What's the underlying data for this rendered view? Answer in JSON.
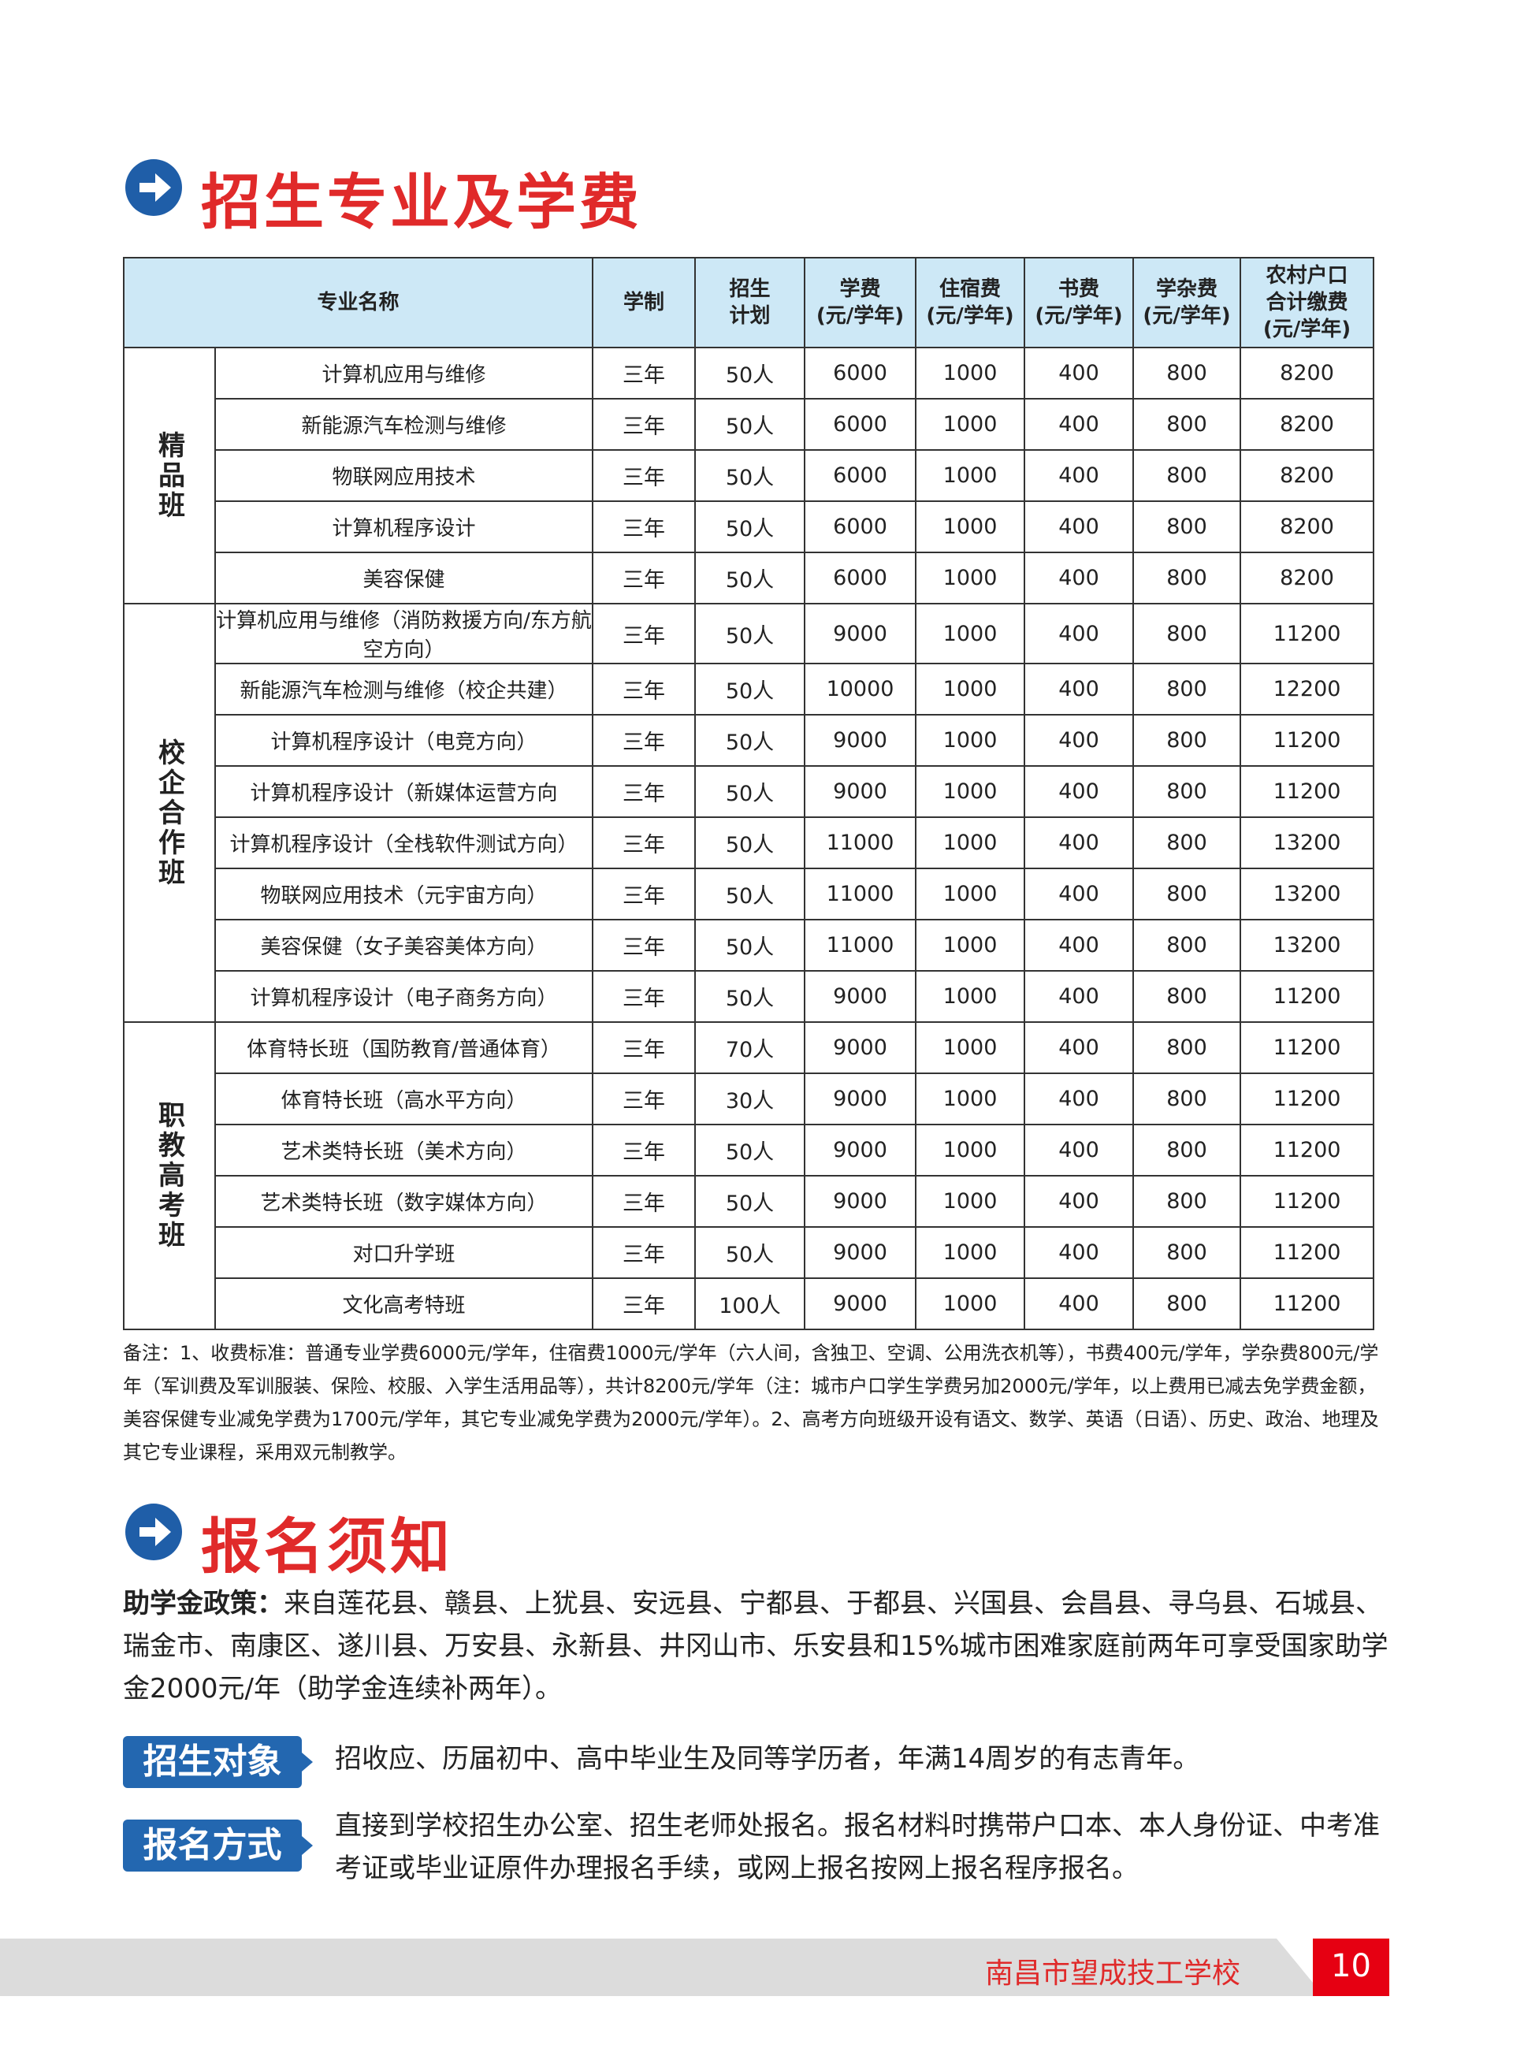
{
  "section1": {
    "title": "招生专业及学费"
  },
  "table": {
    "header": [
      [
        "专业名称"
      ],
      [
        "学制"
      ],
      [
        "招生",
        "计划"
      ],
      [
        "学费",
        "(元/学年)"
      ],
      [
        "住宿费",
        "(元/学年)"
      ],
      [
        "书费",
        "(元/学年)"
      ],
      [
        "学杂费",
        "(元/学年)"
      ],
      [
        "农村户口",
        "合计缴费",
        "(元/学年)"
      ]
    ],
    "groups": [
      {
        "name": "精品班",
        "rows": [
          [
            "计算机应用与维修",
            "三年",
            "50人",
            6000,
            1000,
            400,
            800,
            8200
          ],
          [
            "新能源汽车检测与维修",
            "三年",
            "50人",
            6000,
            1000,
            400,
            800,
            8200
          ],
          [
            "物联网应用技术",
            "三年",
            "50人",
            6000,
            1000,
            400,
            800,
            8200
          ],
          [
            "计算机程序设计",
            "三年",
            "50人",
            6000,
            1000,
            400,
            800,
            8200
          ],
          [
            "美容保健",
            "三年",
            "50人",
            6000,
            1000,
            400,
            800,
            8200
          ]
        ]
      },
      {
        "name": "校企合作班",
        "rows": [
          [
            "计算机应用与维修（消防救援方向/东方航空方向）",
            "三年",
            "50人",
            9000,
            1000,
            400,
            800,
            11200
          ],
          [
            "新能源汽车检测与维修（校企共建）",
            "三年",
            "50人",
            10000,
            1000,
            400,
            800,
            12200
          ],
          [
            "计算机程序设计（电竞方向）",
            "三年",
            "50人",
            9000,
            1000,
            400,
            800,
            11200
          ],
          [
            "计算机程序设计（新媒体运营方向",
            "三年",
            "50人",
            9000,
            1000,
            400,
            800,
            11200
          ],
          [
            "计算机程序设计（全栈软件测试方向）",
            "三年",
            "50人",
            11000,
            1000,
            400,
            800,
            13200
          ],
          [
            "物联网应用技术（元宇宙方向）",
            "三年",
            "50人",
            11000,
            1000,
            400,
            800,
            13200
          ],
          [
            "美容保健（女子美容美体方向）",
            "三年",
            "50人",
            11000,
            1000,
            400,
            800,
            13200
          ],
          [
            "计算机程序设计（电子商务方向）",
            "三年",
            "50人",
            9000,
            1000,
            400,
            800,
            11200
          ]
        ]
      },
      {
        "name": "职教高考班",
        "rows": [
          [
            "体育特长班（国防教育/普通体育）",
            "三年",
            "70人",
            9000,
            1000,
            400,
            800,
            11200
          ],
          [
            "体育特长班（高水平方向）",
            "三年",
            "30人",
            9000,
            1000,
            400,
            800,
            11200
          ],
          [
            "艺术类特长班（美术方向）",
            "三年",
            "50人",
            9000,
            1000,
            400,
            800,
            11200
          ],
          [
            "艺术类特长班（数字媒体方向）",
            "三年",
            "50人",
            9000,
            1000,
            400,
            800,
            11200
          ],
          [
            "对口升学班",
            "三年",
            "50人",
            9000,
            1000,
            400,
            800,
            11200
          ],
          [
            "文化高考特班",
            "三年",
            "100人",
            9000,
            1000,
            400,
            800,
            11200
          ]
        ]
      }
    ],
    "note": "备注：1、收费标准：普通专业学费6000元/学年，住宿费1000元/学年（六人间，含独卫、空调、公用洗衣机等），书费400元/学年，学杂费800元/学年（军训费及军训服装、保险、校服、入学生活用品等），共计8200元/学年（注：城市户口学生学费另加2000元/学年，以上费用已减去免学费金额，美容保健专业减免学费为1700元/学年，其它专业减免学费为2000元/学年）。2、高考方向班级开设有语文、数学、英语（日语）、历史、政治、地理及其它专业课程，采用双元制教学。"
  },
  "section2": {
    "title": "报名须知",
    "policy": {
      "label": "助学金政策：",
      "text": "来自莲花县、赣县、上犹县、安远县、宁都县、于都县、兴国县、会昌县、寻乌县、石城县、瑞金市、南康区、遂川县、万安县、永新县、井冈山市、乐安县和15%城市困难家庭前两年可享受国家助学金2000元/年（助学金连续补两年）。"
    },
    "items": [
      {
        "label": "招生对象",
        "text": "招收应、历届初中、高中毕业生及同等学历者，年满14周岁的有志青年。"
      },
      {
        "label": "报名方式",
        "text": "直接到学校招生办公室、招生老师处报名。报名材料时携带户口本、本人身份证、中考准考证或毕业证原件办理报名手续，或网上报名按网上报名程序报名。"
      }
    ]
  },
  "footer": {
    "school": "南昌市望成技工学校",
    "page": "10"
  }
}
